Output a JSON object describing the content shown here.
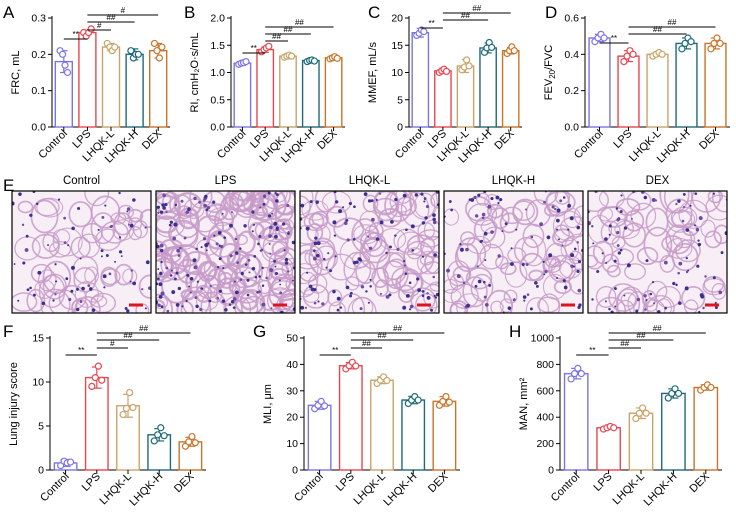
{
  "colors": {
    "Control": "#7b74e6",
    "LPS": "#e8474f",
    "LHQK-L": "#c9a46a",
    "LHQK-H": "#1e6a78",
    "DEX": "#c8752a",
    "scale_bar": "#e0141e"
  },
  "histology": {
    "label": "E",
    "titles": [
      "Control",
      "LPS",
      "LHQK-L",
      "LHQK-H",
      "DEX"
    ]
  },
  "chart_data": [
    {
      "label": "A",
      "type": "bar",
      "categories": [
        "Control",
        "LPS",
        "LHQK-L",
        "LHQK-H",
        "DEX"
      ],
      "ylabel": "FRC, mL",
      "ylim": [
        0,
        0.3
      ],
      "yticks": [
        "0.0",
        "0.1",
        "0.2",
        "0.3"
      ],
      "values": [
        0.18,
        0.26,
        0.22,
        0.2,
        0.21
      ],
      "errors": [
        0.03,
        0.006,
        0.01,
        0.015,
        0.02
      ],
      "points": [
        [
          0.21,
          0.2,
          0.17,
          0.15
        ],
        [
          0.26,
          0.25,
          0.26,
          0.27
        ],
        [
          0.23,
          0.22,
          0.21,
          0.22
        ],
        [
          0.21,
          0.19,
          0.2,
          0.2
        ],
        [
          0.23,
          0.21,
          0.19,
          0.22
        ]
      ],
      "annotations": [
        {
          "from": 0,
          "to": 1,
          "text": "**"
        },
        {
          "from": 1,
          "to": 2,
          "text": "#"
        },
        {
          "from": 1,
          "to": 3,
          "text": "##"
        },
        {
          "from": 1,
          "to": 4,
          "text": "#"
        }
      ]
    },
    {
      "label": "B",
      "type": "bar",
      "categories": [
        "Control",
        "LPS",
        "LHQK-L",
        "LHQK-H",
        "DEX"
      ],
      "ylabel": "RI, cmH₂O·s/mL",
      "ylim": [
        0,
        2.0
      ],
      "yticks": [
        "0.0",
        "0.5",
        "1.0",
        "1.5",
        "2.0"
      ],
      "values": [
        1.17,
        1.42,
        1.3,
        1.22,
        1.27
      ],
      "errors": [
        0.04,
        0.05,
        0.05,
        0.02,
        0.03
      ],
      "points": [
        [
          1.15,
          1.17,
          1.18,
          1.2
        ],
        [
          1.38,
          1.42,
          1.45,
          1.48
        ],
        [
          1.28,
          1.3,
          1.32,
          1.3
        ],
        [
          1.2,
          1.22,
          1.23,
          1.21
        ],
        [
          1.25,
          1.27,
          1.29,
          1.26
        ]
      ],
      "annotations": [
        {
          "from": 0,
          "to": 1,
          "text": "**"
        },
        {
          "from": 1,
          "to": 2,
          "text": "##"
        },
        {
          "from": 1,
          "to": 3,
          "text": "##"
        },
        {
          "from": 1,
          "to": 4,
          "text": "##"
        }
      ]
    },
    {
      "label": "C",
      "type": "bar",
      "categories": [
        "Control",
        "LPS",
        "LHQK-L",
        "LHQK-H",
        "DEX"
      ],
      "ylabel": "MMEF, mL/s",
      "ylim": [
        0,
        20
      ],
      "yticks": [
        "0",
        "5",
        "10",
        "15",
        "20"
      ],
      "values": [
        17.3,
        10.3,
        11.2,
        14.5,
        14.0
      ],
      "errors": [
        0.8,
        0.5,
        1.2,
        0.9,
        0.6
      ],
      "points": [
        [
          16.8,
          17.2,
          17.8,
          17.5
        ],
        [
          10.0,
          10.3,
          10.6,
          10.2
        ],
        [
          10.5,
          11.0,
          12.3,
          11.2
        ],
        [
          13.7,
          14.5,
          15.5,
          14.6
        ],
        [
          13.5,
          14.0,
          14.7,
          14.0
        ]
      ],
      "annotations": [
        {
          "from": 0,
          "to": 1,
          "text": "**"
        },
        {
          "from": 1,
          "to": 3,
          "text": "##"
        },
        {
          "from": 1,
          "to": 4,
          "text": "##"
        }
      ]
    },
    {
      "label": "D",
      "type": "bar",
      "categories": [
        "Control",
        "LPS",
        "LHQK-L",
        "LHQK-H",
        "DEX"
      ],
      "ylabel": "FEV20/FVC",
      "ylim": [
        0,
        0.6
      ],
      "yticks": [
        "0.0",
        "0.2",
        "0.4",
        "0.6"
      ],
      "values": [
        0.49,
        0.39,
        0.4,
        0.46,
        0.46
      ],
      "errors": [
        0.02,
        0.03,
        0.01,
        0.03,
        0.03
      ],
      "points": [
        [
          0.47,
          0.49,
          0.51,
          0.49
        ],
        [
          0.36,
          0.39,
          0.42,
          0.4
        ],
        [
          0.39,
          0.4,
          0.41,
          0.4
        ],
        [
          0.43,
          0.46,
          0.49,
          0.47
        ],
        [
          0.43,
          0.46,
          0.49,
          0.46
        ]
      ],
      "annotations": [
        {
          "from": 0,
          "to": 1,
          "text": "**"
        },
        {
          "from": 1,
          "to": 3,
          "text": "##"
        },
        {
          "from": 1,
          "to": 4,
          "text": "##"
        }
      ]
    },
    {
      "label": "F",
      "type": "bar",
      "categories": [
        "Control",
        "LPS",
        "LHQK-L",
        "LHQK-H",
        "DEX"
      ],
      "ylabel": "Lung injury score",
      "ylim": [
        0,
        15
      ],
      "yticks": [
        "0",
        "5",
        "10",
        "15"
      ],
      "values": [
        0.8,
        10.5,
        7.3,
        4.0,
        3.2
      ],
      "errors": [
        0.4,
        1.2,
        1.3,
        0.7,
        0.5
      ],
      "points": [
        [
          0.5,
          1.0,
          0.8,
          0.9
        ],
        [
          9.5,
          10.5,
          11.8,
          10.2
        ],
        [
          6.3,
          7.0,
          8.8,
          7.1
        ],
        [
          3.3,
          4.0,
          4.8,
          3.9
        ],
        [
          2.7,
          3.2,
          3.8,
          3.1
        ]
      ],
      "annotations": [
        {
          "from": 0,
          "to": 1,
          "text": "**"
        },
        {
          "from": 1,
          "to": 2,
          "text": "#"
        },
        {
          "from": 1,
          "to": 3,
          "text": "##"
        },
        {
          "from": 1,
          "to": 4,
          "text": "##"
        }
      ]
    },
    {
      "label": "G",
      "type": "bar",
      "categories": [
        "Control",
        "LPS",
        "LHQK-L",
        "LHQK-H",
        "DEX"
      ],
      "ylabel": "MLI, μm",
      "ylim": [
        0,
        50
      ],
      "yticks": [
        "0",
        "10",
        "20",
        "30",
        "40",
        "50"
      ],
      "values": [
        24.5,
        39.5,
        34.0,
        26.5,
        26.0
      ],
      "errors": [
        1.5,
        1.2,
        1.3,
        1.4,
        1.8
      ],
      "points": [
        [
          23.2,
          24.5,
          26.0,
          24.3
        ],
        [
          38.3,
          39.5,
          40.8,
          39.4
        ],
        [
          32.8,
          34.0,
          35.3,
          33.9
        ],
        [
          25.2,
          26.5,
          27.8,
          26.5
        ],
        [
          24.5,
          26.0,
          27.8,
          25.7
        ]
      ],
      "annotations": [
        {
          "from": 0,
          "to": 1,
          "text": "**"
        },
        {
          "from": 1,
          "to": 2,
          "text": "##"
        },
        {
          "from": 1,
          "to": 3,
          "text": "##"
        },
        {
          "from": 1,
          "to": 4,
          "text": "##"
        }
      ]
    },
    {
      "label": "H",
      "type": "bar",
      "categories": [
        "Control",
        "LPS",
        "LHQK-L",
        "LHQK-H",
        "DEX"
      ],
      "ylabel": "MAN, mm²",
      "ylim": [
        0,
        1000
      ],
      "yticks": [
        "0",
        "200",
        "400",
        "600",
        "800",
        "1000"
      ],
      "values": [
        730,
        320,
        430,
        580,
        625
      ],
      "errors": [
        40,
        10,
        40,
        35,
        20
      ],
      "points": [
        [
          690,
          730,
          770,
          730
        ],
        [
          310,
          320,
          330,
          320
        ],
        [
          390,
          430,
          470,
          430
        ],
        [
          545,
          580,
          615,
          580
        ],
        [
          605,
          625,
          645,
          625
        ]
      ],
      "annotations": [
        {
          "from": 0,
          "to": 1,
          "text": "**"
        },
        {
          "from": 1,
          "to": 2,
          "text": "##"
        },
        {
          "from": 1,
          "to": 3,
          "text": "##"
        },
        {
          "from": 1,
          "to": 4,
          "text": "##"
        }
      ]
    }
  ]
}
